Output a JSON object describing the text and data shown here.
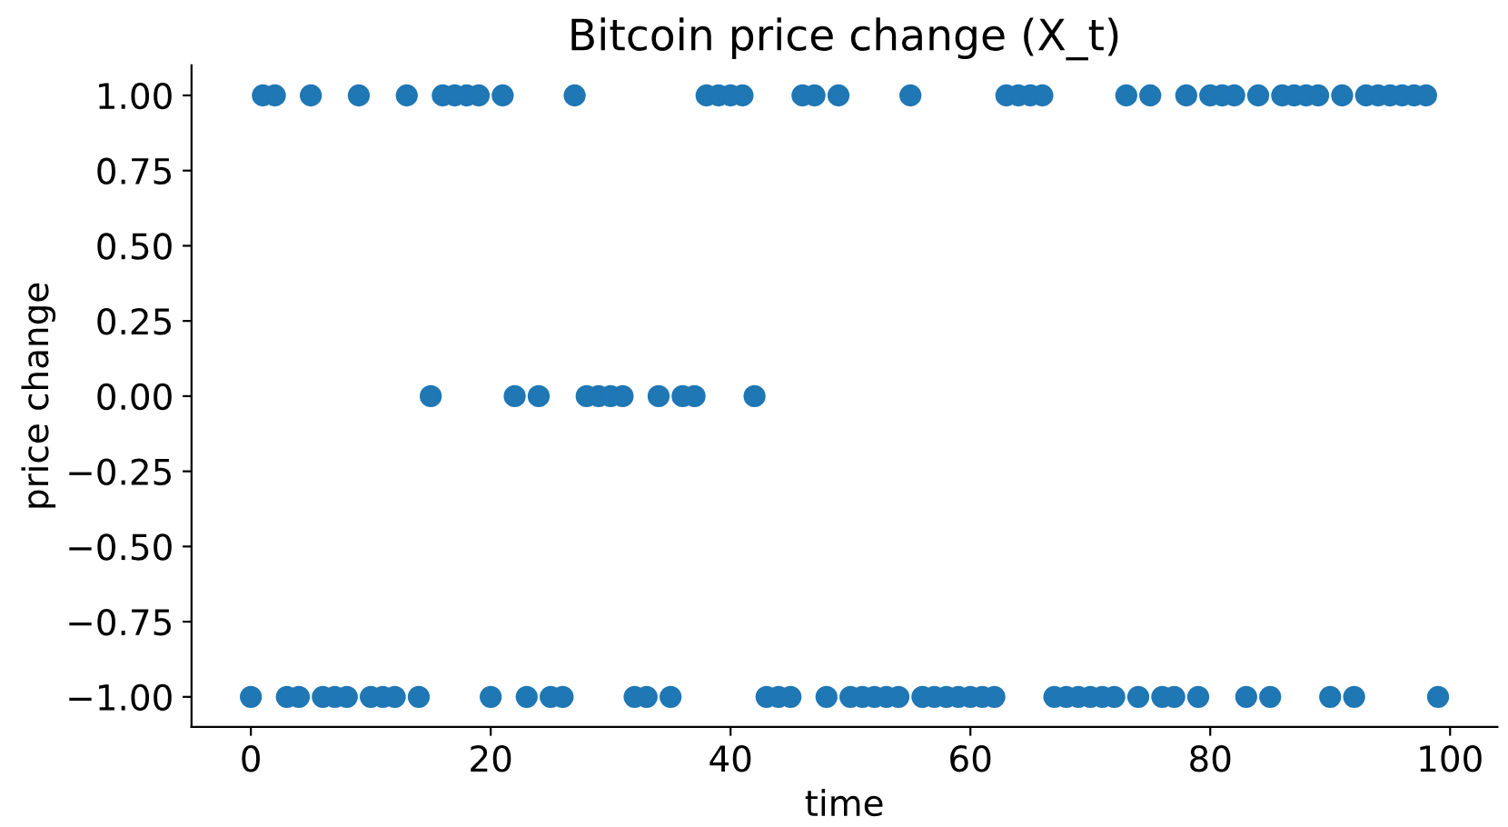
{
  "chart_data": {
    "type": "scatter",
    "title": "Bitcoin price change (X_t)",
    "xlabel": "time",
    "ylabel": "price change",
    "x": [
      0,
      1,
      2,
      3,
      4,
      5,
      6,
      7,
      8,
      9,
      10,
      11,
      12,
      13,
      14,
      15,
      16,
      17,
      18,
      19,
      20,
      21,
      22,
      23,
      24,
      25,
      26,
      27,
      28,
      29,
      30,
      31,
      32,
      33,
      34,
      35,
      36,
      37,
      38,
      39,
      40,
      41,
      42,
      43,
      44,
      45,
      46,
      47,
      48,
      49,
      50,
      51,
      52,
      53,
      54,
      55,
      56,
      57,
      58,
      59,
      60,
      61,
      62,
      63,
      64,
      65,
      66,
      67,
      68,
      69,
      70,
      71,
      72,
      73,
      74,
      75,
      76,
      77,
      78,
      79,
      80,
      81,
      82,
      83,
      84,
      85,
      86,
      87,
      88,
      89,
      90,
      91,
      92,
      93,
      94,
      95,
      96,
      97,
      98,
      99
    ],
    "values": [
      -1,
      1,
      1,
      -1,
      -1,
      1,
      -1,
      -1,
      -1,
      1,
      -1,
      -1,
      -1,
      1,
      -1,
      0,
      1,
      1,
      1,
      1,
      -1,
      1,
      0,
      -1,
      0,
      -1,
      -1,
      1,
      0,
      0,
      0,
      0,
      -1,
      -1,
      0,
      -1,
      0,
      0,
      1,
      1,
      1,
      1,
      0,
      -1,
      -1,
      -1,
      1,
      1,
      -1,
      1,
      -1,
      -1,
      -1,
      -1,
      -1,
      1,
      -1,
      -1,
      -1,
      -1,
      -1,
      -1,
      -1,
      1,
      1,
      1,
      1,
      -1,
      -1,
      -1,
      -1,
      -1,
      -1,
      1,
      -1,
      1,
      -1,
      -1,
      1,
      -1,
      1,
      1,
      1,
      -1,
      1,
      -1,
      1,
      1,
      1,
      1,
      -1,
      1,
      -1,
      1,
      1,
      1,
      1,
      1,
      1,
      -1
    ],
    "color": "#1f77b4",
    "marker": "circle",
    "grid": false,
    "xlim": [
      -4.95,
      103.95
    ],
    "xticks": [
      0,
      20,
      40,
      60,
      80,
      100
    ],
    "ylim": [
      -1.1,
      1.1
    ],
    "yticks": [
      {
        "value": -1,
        "label": "−1.00"
      },
      {
        "value": -0.75,
        "label": "−0.75"
      },
      {
        "value": -0.5,
        "label": "−0.50"
      },
      {
        "value": -0.25,
        "label": "−0.25"
      },
      {
        "value": 0,
        "label": "0.00"
      },
      {
        "value": 0.25,
        "label": "0.25"
      },
      {
        "value": 0.5,
        "label": "0.50"
      },
      {
        "value": 0.75,
        "label": "0.75"
      },
      {
        "value": 1,
        "label": "1.00"
      }
    ]
  }
}
